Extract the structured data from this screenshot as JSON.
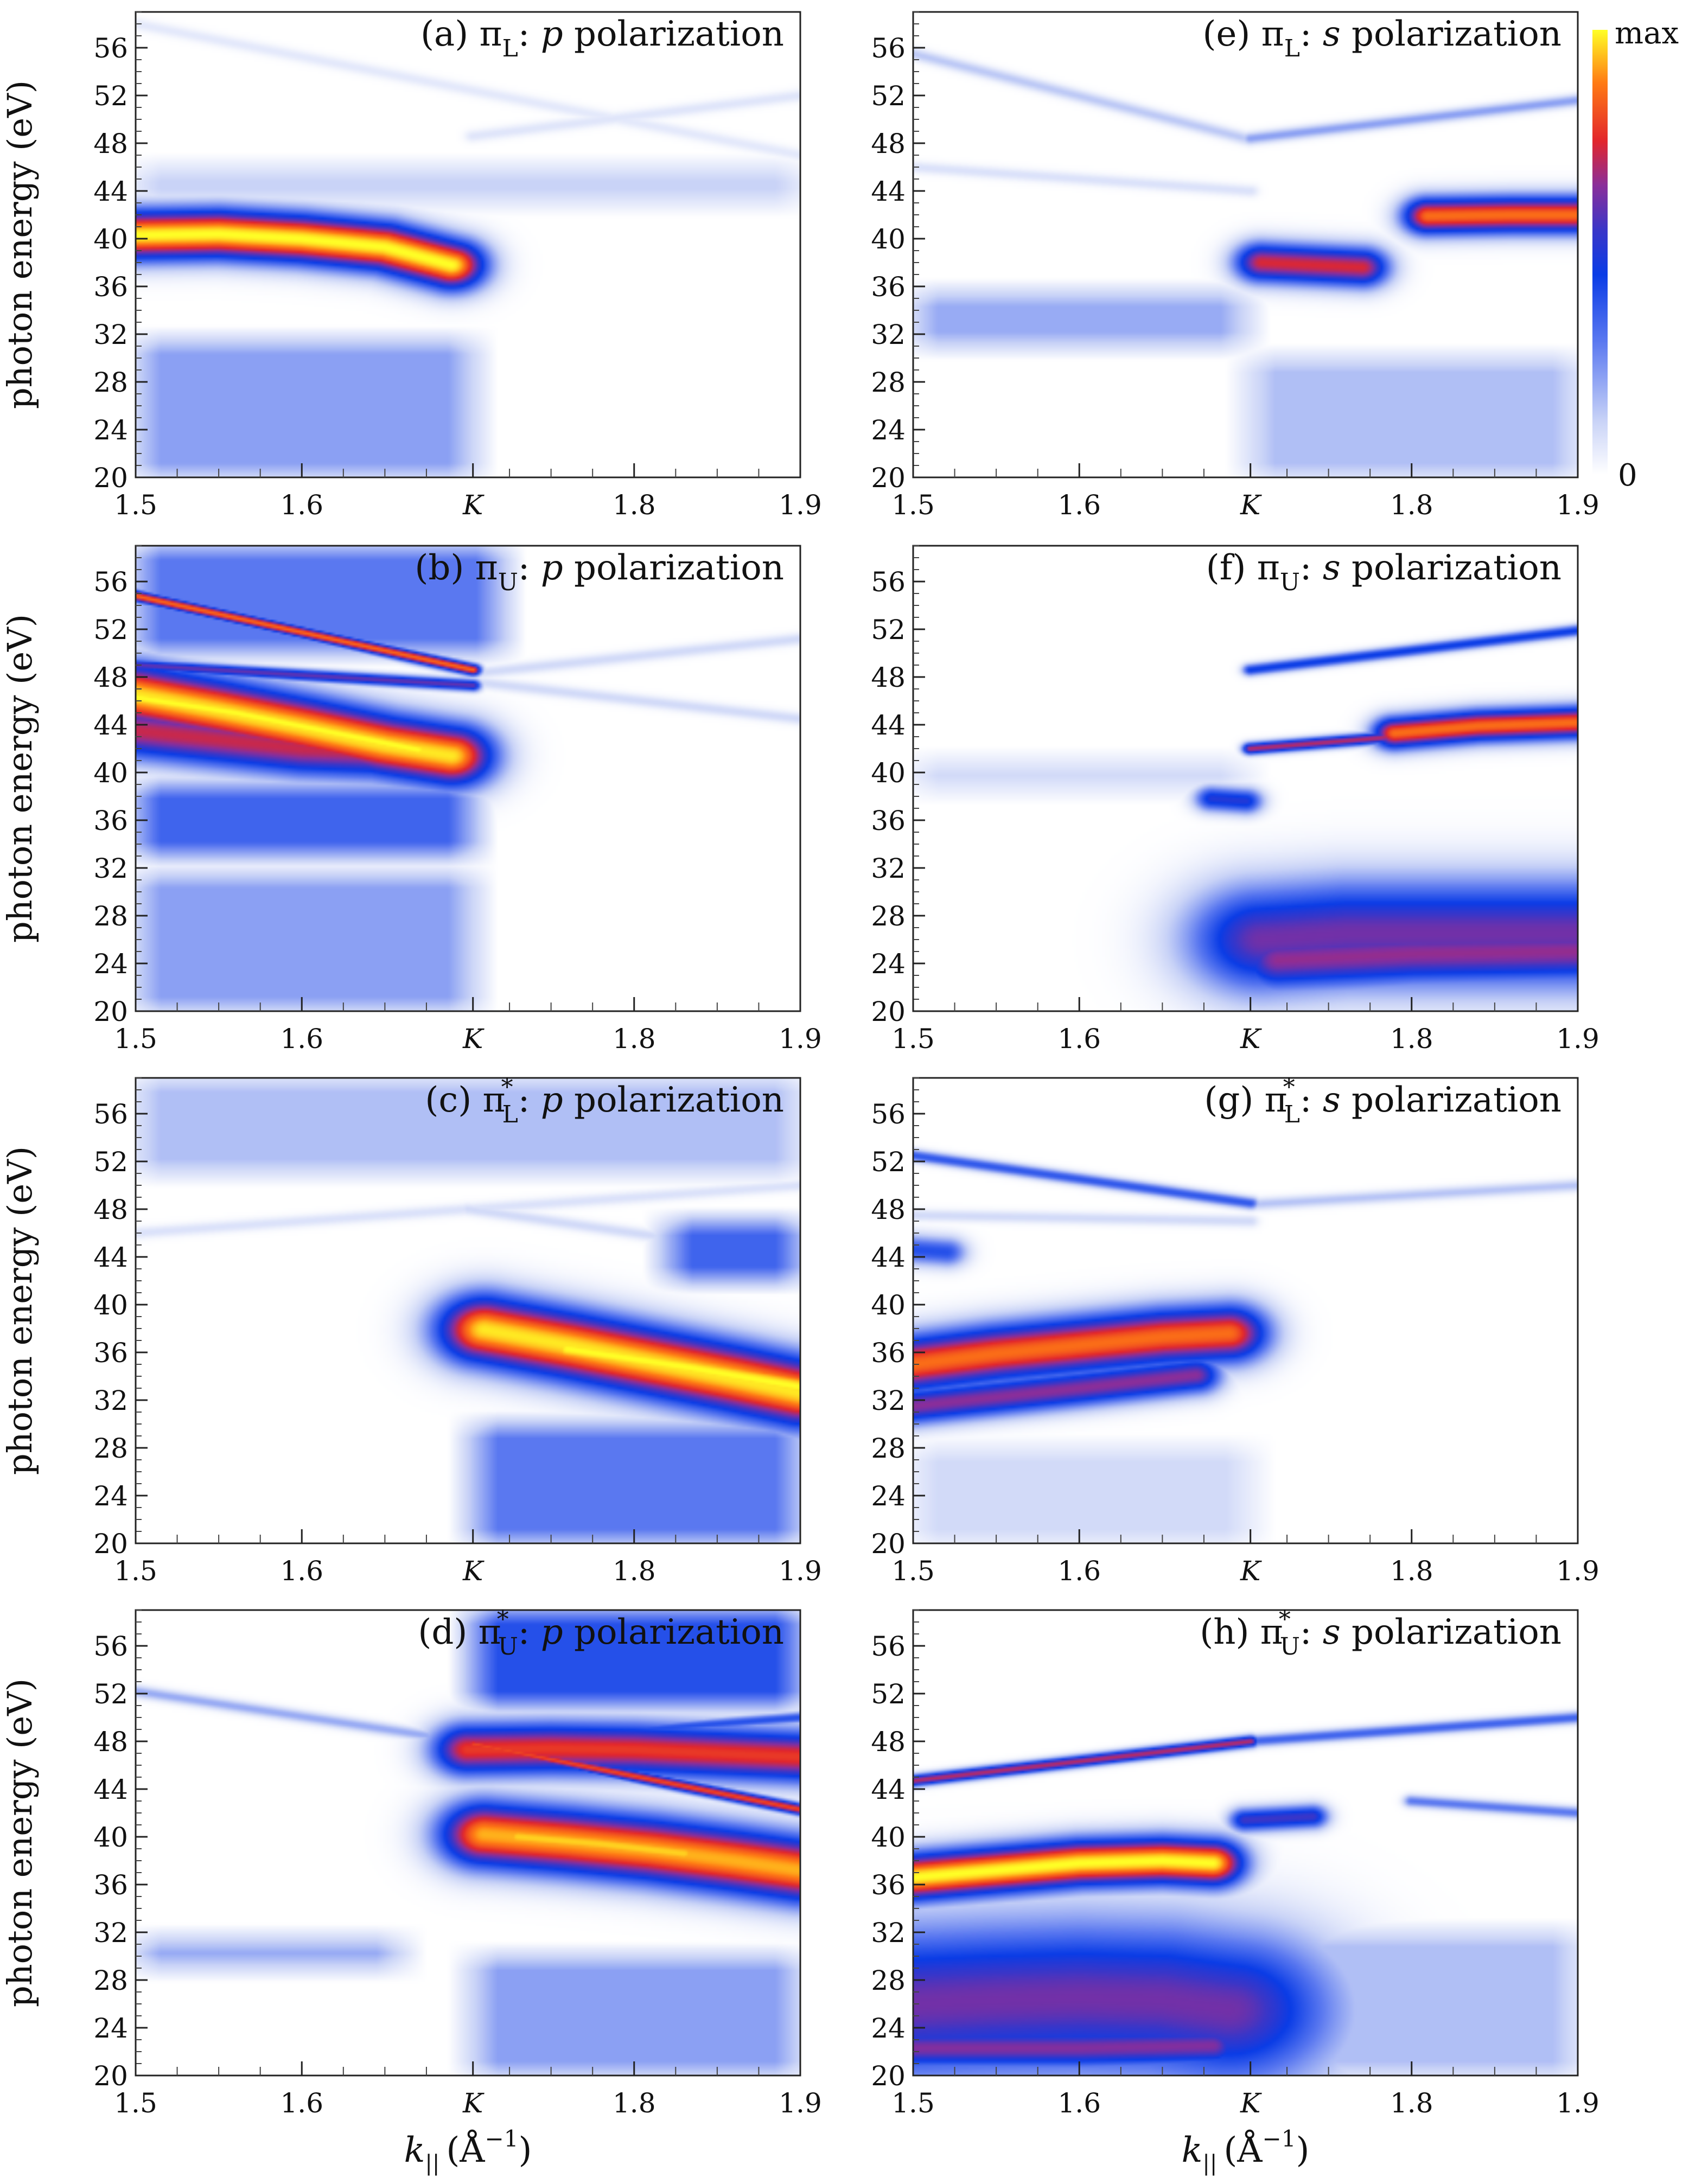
{
  "chart_data": {
    "type": "heatmap",
    "description_axes": {
      "ylabel": "photon energy (eV)",
      "xlabel_main": "k",
      "xlabel_sub": "||",
      "xlabel_unit": "(Å",
      "xlabel_unit_exp": "−1",
      "xlabel_unit_close": ")"
    },
    "x_range": [
      1.5,
      1.9
    ],
    "y_range": [
      20,
      59
    ],
    "x_ticks": [
      {
        "value": 1.5,
        "label": "1.5"
      },
      {
        "value": 1.6,
        "label": "1.6"
      },
      {
        "value": 1.703,
        "label": "K"
      },
      {
        "value": 1.8,
        "label": "1.8"
      },
      {
        "value": 1.9,
        "label": "1.9"
      }
    ],
    "y_ticks": [
      20,
      24,
      28,
      32,
      36,
      40,
      44,
      48,
      52,
      56
    ],
    "colorbar": {
      "max_label": "max",
      "min_label": "0",
      "stops": [
        "#ffffff",
        "#c9d3f7",
        "#5a78f0",
        "#0a3ce6",
        "#3a36c8",
        "#8a2e9a",
        "#e2262c",
        "#ff7a14",
        "#ffff26"
      ]
    },
    "panels": [
      {
        "id": "a",
        "col": 0,
        "row": 0,
        "letter": "(a) ",
        "orbital": "π",
        "sub": "L",
        "sup": "",
        "pol_letter": "p",
        "pol_word": " polarization",
        "background": [
          {
            "x0": 1.5,
            "x1": 1.703,
            "y0": 20,
            "y1": 31.5,
            "v": 0.22
          },
          {
            "x0": 1.5,
            "x1": 1.9,
            "y0": 43,
            "y1": 46,
            "v": 0.12
          }
        ],
        "blobs": [
          {
            "points": [
              [
                1.5,
                40.3
              ],
              [
                1.55,
                40.4
              ],
              [
                1.6,
                40.0
              ],
              [
                1.65,
                39.3
              ],
              [
                1.69,
                37.8
              ]
            ],
            "width": 4.0,
            "peak": 1.0
          },
          {
            "points": [
              [
                1.52,
                40.2
              ],
              [
                1.58,
                40.1
              ],
              [
                1.64,
                39.2
              ],
              [
                1.68,
                38.5
              ]
            ],
            "width": 2.2,
            "peak": 0.95
          }
        ],
        "lines": [
          {
            "x0": 1.5,
            "y0": 58,
            "x1": 1.9,
            "y1": 47,
            "v": 0.06
          },
          {
            "x0": 1.703,
            "y0": 48.6,
            "x1": 1.9,
            "y1": 52.0,
            "v": 0.07
          }
        ]
      },
      {
        "id": "b",
        "col": 0,
        "row": 1,
        "letter": "(b) ",
        "orbital": "π",
        "sub": "U",
        "sup": "",
        "pol_letter": "p",
        "pol_word": " polarization",
        "background": [
          {
            "x0": 1.5,
            "x1": 1.703,
            "y0": 20,
            "y1": 31.5,
            "v": 0.22
          },
          {
            "x0": 1.5,
            "x1": 1.703,
            "y0": 33,
            "y1": 39.0,
            "v": 0.35
          },
          {
            "x0": 1.5,
            "x1": 1.72,
            "y0": 50,
            "y1": 59,
            "v": 0.3
          }
        ],
        "blobs": [
          {
            "points": [
              [
                1.5,
                46.5
              ],
              [
                1.55,
                45.2
              ],
              [
                1.6,
                43.8
              ],
              [
                1.65,
                42.3
              ],
              [
                1.69,
                41.4
              ]
            ],
            "width": 5.0,
            "peak": 0.98
          },
          {
            "points": [
              [
                1.5,
                46.3
              ],
              [
                1.56,
                45.0
              ],
              [
                1.62,
                43.3
              ],
              [
                1.67,
                41.9
              ]
            ],
            "width": 2.8,
            "peak": 1.0
          },
          {
            "points": [
              [
                1.5,
                43.5
              ],
              [
                1.6,
                42.0
              ],
              [
                1.69,
                41.5
              ]
            ],
            "width": 4.5,
            "peak": 0.72
          }
        ],
        "lines": [
          {
            "x0": 1.5,
            "y0": 54.8,
            "x1": 1.703,
            "y1": 48.6,
            "v": 0.85
          },
          {
            "x0": 1.5,
            "y0": 49.0,
            "x1": 1.703,
            "y1": 47.3,
            "v": 0.6
          },
          {
            "x0": 1.703,
            "y0": 48.3,
            "x1": 1.9,
            "y1": 51.2,
            "v": 0.1
          },
          {
            "x0": 1.703,
            "y0": 47.6,
            "x1": 1.9,
            "y1": 44.5,
            "v": 0.1
          }
        ]
      },
      {
        "id": "c",
        "col": 0,
        "row": 2,
        "letter": "(c) ",
        "orbital": "π",
        "sub": "L",
        "sup": "*",
        "pol_letter": "p",
        "pol_word": " polarization",
        "background": [
          {
            "x0": 1.703,
            "x1": 1.9,
            "y0": 20,
            "y1": 30,
            "v": 0.3
          },
          {
            "x0": 1.5,
            "x1": 1.9,
            "y0": 51,
            "y1": 59,
            "v": 0.16
          },
          {
            "x0": 1.82,
            "x1": 1.9,
            "y0": 42,
            "y1": 47,
            "v": 0.35
          }
        ],
        "blobs": [
          {
            "points": [
              [
                1.71,
                37.9
              ],
              [
                1.76,
                36.6
              ],
              [
                1.81,
                35.2
              ],
              [
                1.86,
                33.8
              ],
              [
                1.9,
                32.6
              ]
            ],
            "width": 5.6,
            "peak": 0.98
          },
          {
            "points": [
              [
                1.76,
                36.3
              ],
              [
                1.83,
                34.8
              ],
              [
                1.9,
                33.1
              ]
            ],
            "width": 3.3,
            "peak": 1.0
          }
        ],
        "lines": [
          {
            "x0": 1.5,
            "y0": 46,
            "x1": 1.9,
            "y1": 50,
            "v": 0.08
          },
          {
            "x0": 1.7,
            "y0": 48,
            "x1": 1.9,
            "y1": 44,
            "v": 0.1
          }
        ]
      },
      {
        "id": "d",
        "col": 0,
        "row": 3,
        "letter": "(d) ",
        "orbital": "π",
        "sub": "U",
        "sup": "*",
        "pol_letter": "p",
        "pol_word": " polarization",
        "background": [
          {
            "x0": 1.703,
            "x1": 1.9,
            "y0": 20,
            "y1": 30,
            "v": 0.22
          },
          {
            "x0": 1.703,
            "x1": 1.9,
            "y0": 51,
            "y1": 59,
            "v": 0.4
          },
          {
            "x0": 1.5,
            "x1": 1.66,
            "y0": 29,
            "y1": 31.5,
            "v": 0.2
          }
        ],
        "blobs": [
          {
            "points": [
              [
                1.71,
                40.2
              ],
              [
                1.76,
                39.6
              ],
              [
                1.81,
                38.9
              ],
              [
                1.86,
                38.0
              ],
              [
                1.9,
                37.2
              ]
            ],
            "width": 5.3,
            "peak": 0.93
          },
          {
            "points": [
              [
                1.73,
                40.0
              ],
              [
                1.78,
                39.4
              ],
              [
                1.83,
                38.6
              ]
            ],
            "width": 3.0,
            "peak": 0.96
          },
          {
            "points": [
              [
                1.7,
                47.3
              ],
              [
                1.75,
                47.4
              ],
              [
                1.8,
                47.3
              ],
              [
                1.85,
                47.0
              ],
              [
                1.9,
                46.7
              ]
            ],
            "width": 4.2,
            "peak": 0.78
          }
        ],
        "lines": [
          {
            "x0": 1.5,
            "y0": 52.2,
            "x1": 1.703,
            "y1": 47.9,
            "v": 0.2
          },
          {
            "x0": 1.703,
            "y0": 47.8,
            "x1": 1.9,
            "y1": 42.3,
            "v": 0.8
          },
          {
            "x0": 1.703,
            "y0": 47.9,
            "x1": 1.9,
            "y1": 50.0,
            "v": 0.4
          }
        ]
      },
      {
        "id": "e",
        "col": 1,
        "row": 0,
        "letter": "(e) ",
        "orbital": "π",
        "sub": "L",
        "sup": "",
        "pol_letter": "s",
        "pol_word": " polarization",
        "background": [
          {
            "x0": 1.703,
            "x1": 1.9,
            "y0": 20,
            "y1": 30,
            "v": 0.16
          },
          {
            "x0": 1.5,
            "x1": 1.7,
            "y0": 31,
            "y1": 35.5,
            "v": 0.2
          }
        ],
        "blobs": [
          {
            "points": [
              [
                1.71,
                38.0
              ],
              [
                1.74,
                37.8
              ],
              [
                1.77,
                37.6
              ]
            ],
            "width": 3.2,
            "peak": 0.74
          },
          {
            "points": [
              [
                1.81,
                41.9
              ],
              [
                1.86,
                42.0
              ],
              [
                1.9,
                42.0
              ]
            ],
            "width": 3.0,
            "peak": 0.86
          }
        ],
        "lines": [
          {
            "x0": 1.5,
            "y0": 55.5,
            "x1": 1.703,
            "y1": 48.3,
            "v": 0.14
          },
          {
            "x0": 1.703,
            "y0": 48.4,
            "x1": 1.9,
            "y1": 51.6,
            "v": 0.22
          },
          {
            "x0": 1.5,
            "y0": 46,
            "x1": 1.703,
            "y1": 44,
            "v": 0.08
          }
        ]
      },
      {
        "id": "f",
        "col": 1,
        "row": 1,
        "letter": "(f) ",
        "orbital": "π",
        "sub": "U",
        "sup": "",
        "pol_letter": "s",
        "pol_word": " polarization",
        "background": [
          {
            "x0": 1.5,
            "x1": 1.7,
            "y0": 38.5,
            "y1": 41,
            "v": 0.1
          }
        ],
        "blobs": [
          {
            "points": [
              [
                1.71,
                26.0
              ],
              [
                1.76,
                26.5
              ],
              [
                1.81,
                26.5
              ],
              [
                1.86,
                26.5
              ],
              [
                1.9,
                26.5
              ]
            ],
            "width": 8.6,
            "peak": 0.62
          },
          {
            "points": [
              [
                1.72,
                24.3
              ],
              [
                1.8,
                24.8
              ],
              [
                1.9,
                25.0
              ]
            ],
            "width": 5.0,
            "peak": 0.66
          },
          {
            "points": [
              [
                1.79,
                43.3
              ],
              [
                1.84,
                43.9
              ],
              [
                1.88,
                44.1
              ],
              [
                1.9,
                44.2
              ]
            ],
            "width": 2.6,
            "peak": 0.86
          },
          {
            "points": [
              [
                1.68,
                37.8
              ],
              [
                1.7,
                37.6
              ]
            ],
            "width": 2.0,
            "peak": 0.5
          }
        ],
        "lines": [
          {
            "x0": 1.703,
            "y0": 48.6,
            "x1": 1.9,
            "y1": 51.9,
            "v": 0.45
          },
          {
            "x0": 1.703,
            "y0": 42.0,
            "x1": 1.79,
            "y1": 43.0,
            "v": 0.7
          }
        ]
      },
      {
        "id": "g",
        "col": 1,
        "row": 2,
        "letter": "(g) ",
        "orbital": "π",
        "sub": "L",
        "sup": "*",
        "pol_letter": "s",
        "pol_word": " polarization",
        "background": [
          {
            "x0": 1.5,
            "x1": 1.703,
            "y0": 20,
            "y1": 28,
            "v": 0.1
          }
        ],
        "blobs": [
          {
            "points": [
              [
                1.5,
                35.0
              ],
              [
                1.55,
                35.9
              ],
              [
                1.6,
                36.6
              ],
              [
                1.65,
                37.3
              ],
              [
                1.69,
                37.6
              ]
            ],
            "width": 4.6,
            "peak": 0.86
          },
          {
            "points": [
              [
                1.5,
                31.5
              ],
              [
                1.6,
                33.0
              ],
              [
                1.67,
                34.1
              ]
            ],
            "width": 3.0,
            "peak": 0.65
          },
          {
            "points": [
              [
                1.5,
                44.6
              ],
              [
                1.52,
                44.4
              ]
            ],
            "width": 2.3,
            "peak": 0.4
          }
        ],
        "lines": [
          {
            "x0": 1.5,
            "y0": 52.5,
            "x1": 1.703,
            "y1": 48.5,
            "v": 0.38
          },
          {
            "x0": 1.703,
            "y0": 48.4,
            "x1": 1.9,
            "y1": 50.0,
            "v": 0.15
          },
          {
            "x0": 1.5,
            "y0": 47.5,
            "x1": 1.703,
            "y1": 47.0,
            "v": 0.1
          }
        ]
      },
      {
        "id": "h",
        "col": 1,
        "row": 3,
        "letter": "(h) ",
        "orbital": "π",
        "sub": "U",
        "sup": "*",
        "pol_letter": "s",
        "pol_word": " polarization",
        "background": [
          {
            "x0": 1.703,
            "x1": 1.9,
            "y0": 20,
            "y1": 32,
            "v": 0.16
          }
        ],
        "blobs": [
          {
            "points": [
              [
                1.5,
                26.0
              ],
              [
                1.55,
                26.3
              ],
              [
                1.6,
                26.5
              ],
              [
                1.65,
                26.3
              ],
              [
                1.69,
                25.5
              ]
            ],
            "width": 12.5,
            "peak": 0.62
          },
          {
            "points": [
              [
                1.5,
                22.3
              ],
              [
                1.6,
                22.3
              ],
              [
                1.68,
                22.5
              ]
            ],
            "width": 3.4,
            "peak": 0.64
          },
          {
            "points": [
              [
                1.5,
                36.6
              ],
              [
                1.55,
                37.2
              ],
              [
                1.6,
                37.8
              ],
              [
                1.65,
                38.0
              ],
              [
                1.68,
                37.8
              ]
            ],
            "width": 3.8,
            "peak": 1.0
          },
          {
            "points": [
              [
                1.7,
                41.4
              ],
              [
                1.74,
                41.7
              ]
            ],
            "width": 1.9,
            "peak": 0.55
          }
        ],
        "lines": [
          {
            "x0": 1.5,
            "y0": 44.7,
            "x1": 1.703,
            "y1": 48.0,
            "v": 0.7
          },
          {
            "x0": 1.703,
            "y0": 48.0,
            "x1": 1.9,
            "y1": 50.0,
            "v": 0.35
          },
          {
            "x0": 1.8,
            "y0": 43.0,
            "x1": 1.9,
            "y1": 42.0,
            "v": 0.3
          }
        ]
      }
    ]
  }
}
